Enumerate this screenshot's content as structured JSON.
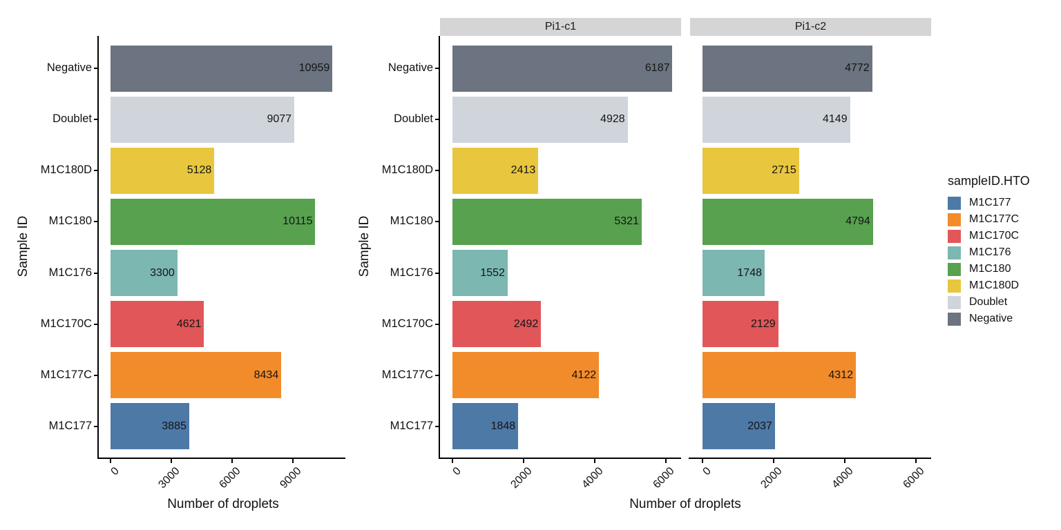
{
  "figure": {
    "background": "#ffffff",
    "axis_color": "#000000",
    "text_color": "#111111",
    "strip_bg": "#d5d5d5"
  },
  "legend": {
    "title": "sampleID.HTO",
    "items": [
      "M1C177",
      "M1C177C",
      "M1C170C",
      "M1C176",
      "M1C180",
      "M1C180D",
      "Doublet",
      "Negative"
    ]
  },
  "palette": {
    "M1C177": "#4d79a7",
    "M1C177C": "#f28c2b",
    "M1C170C": "#e15759",
    "M1C176": "#7cb7b1",
    "M1C180": "#57a14f",
    "M1C180D": "#e8c63e",
    "Doublet": "#d0d5dc",
    "Negative": "#6b7480"
  },
  "chart_data": [
    {
      "type": "bar",
      "orientation": "horizontal",
      "title": "",
      "xlabel": "Number of droplets",
      "ylabel": "Sample ID",
      "categories": [
        "Negative",
        "Doublet",
        "M1C180D",
        "M1C180",
        "M1C176",
        "M1C170C",
        "M1C177C",
        "M1C177"
      ],
      "values": [
        10959,
        9077,
        5128,
        10115,
        3300,
        4621,
        8434,
        3885
      ],
      "xticks": [
        0,
        3000,
        6000,
        9000
      ],
      "xlim": [
        -580,
        11600
      ],
      "grid": false,
      "legend_position": "none",
      "bar_value_labels_shown": true
    },
    {
      "type": "bar",
      "orientation": "horizontal",
      "title": "",
      "xlabel": "Number of droplets",
      "ylabel": "Sample ID",
      "categories": [
        "Negative",
        "Doublet",
        "M1C180D",
        "M1C180",
        "M1C176",
        "M1C170C",
        "M1C177C",
        "M1C177"
      ],
      "series": [
        {
          "name": "Pi1-c1",
          "values": [
            6187,
            4928,
            2413,
            5321,
            1552,
            2492,
            4122,
            1848
          ]
        },
        {
          "name": "Pi1-c2",
          "values": [
            4772,
            4149,
            2715,
            4794,
            1748,
            2129,
            4312,
            2037
          ]
        }
      ],
      "xticks": [
        0,
        2000,
        4000,
        6000
      ],
      "xlim": [
        -350,
        6430
      ],
      "grid": false,
      "legend_position": "right",
      "bar_value_labels_shown": true
    }
  ]
}
